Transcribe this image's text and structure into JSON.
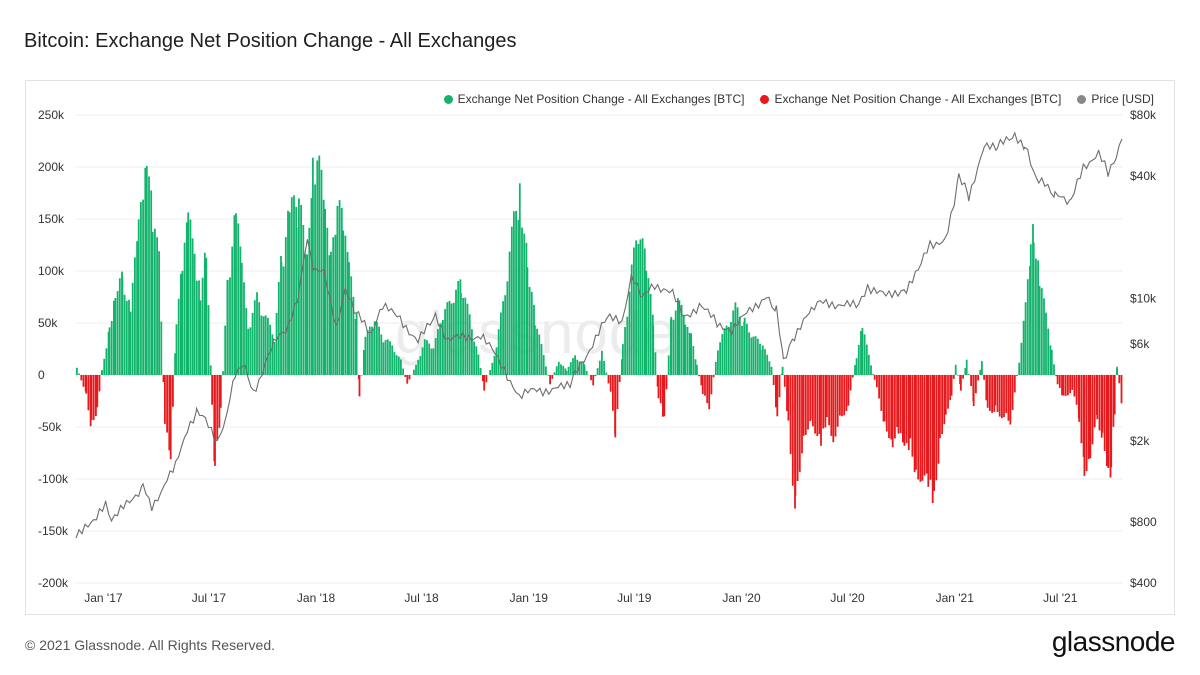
{
  "title": "Bitcoin: Exchange Net Position Change - All Exchanges",
  "footer": "© 2021 Glassnode. All Rights Reserved.",
  "brand": "glassnode",
  "watermark": "glassnode",
  "colors": {
    "positive": "#12b36b",
    "negative": "#e8191c",
    "price": "#6d6d6d",
    "grid": "#eeeeee"
  },
  "legend": [
    {
      "label": "Exchange Net Position Change - All Exchanges [BTC]",
      "color": "#12b36b"
    },
    {
      "label": "Exchange Net Position Change - All Exchanges [BTC]",
      "color": "#e8191c"
    },
    {
      "label": "Price [USD]",
      "color": "#888888"
    }
  ],
  "chart_data": {
    "type": "bar",
    "title": "Bitcoin: Exchange Net Position Change - All Exchanges",
    "x_ticks": [
      "Jan '17",
      "Jul '17",
      "Jan '18",
      "Jul '18",
      "Jan '19",
      "Jul '19",
      "Jan '20",
      "Jul '20",
      "Jan '21",
      "Jul '21"
    ],
    "x_range": [
      "2016-11-15",
      "2021-10-15"
    ],
    "y_left": {
      "ticks": [
        "250k",
        "200k",
        "150k",
        "100k",
        "50k",
        "0",
        "-50k",
        "-100k",
        "-150k",
        "-200k"
      ],
      "ylim": [
        -200000,
        250000
      ]
    },
    "y_right": {
      "scale": "log",
      "ticks": [
        "$80k",
        "$40k",
        "$10k",
        "$6k",
        "$2k",
        "$800",
        "$400"
      ],
      "ylim": [
        400,
        80000
      ]
    },
    "grid": true,
    "legend_position": "top-right",
    "series": [
      {
        "name": "Exchange Net Position Change - All Exchanges [BTC]",
        "type": "bar",
        "points": [
          [
            "2016-11-15",
            8000
          ],
          [
            "2016-12-01",
            -20000
          ],
          [
            "2016-12-10",
            -55000
          ],
          [
            "2016-12-20",
            -35000
          ],
          [
            "2016-12-28",
            5000
          ],
          [
            "2017-01-10",
            50000
          ],
          [
            "2017-01-20",
            90000
          ],
          [
            "2017-02-01",
            100000
          ],
          [
            "2017-02-15",
            70000
          ],
          [
            "2017-03-01",
            150000
          ],
          [
            "2017-03-15",
            250000
          ],
          [
            "2017-03-25",
            160000
          ],
          [
            "2017-04-05",
            120000
          ],
          [
            "2017-04-15",
            -50000
          ],
          [
            "2017-04-25",
            -95000
          ],
          [
            "2017-05-05",
            60000
          ],
          [
            "2017-05-15",
            110000
          ],
          [
            "2017-05-25",
            160000
          ],
          [
            "2017-06-05",
            130000
          ],
          [
            "2017-06-15",
            90000
          ],
          [
            "2017-06-25",
            130000
          ],
          [
            "2017-07-05",
            -30000
          ],
          [
            "2017-07-10",
            -100000
          ],
          [
            "2017-07-20",
            -40000
          ],
          [
            "2017-08-01",
            100000
          ],
          [
            "2017-08-15",
            170000
          ],
          [
            "2017-08-25",
            110000
          ],
          [
            "2017-09-05",
            50000
          ],
          [
            "2017-09-20",
            80000
          ],
          [
            "2017-10-05",
            60000
          ],
          [
            "2017-10-20",
            40000
          ],
          [
            "2017-11-01",
            120000
          ],
          [
            "2017-11-15",
            170000
          ],
          [
            "2017-12-01",
            180000
          ],
          [
            "2017-12-15",
            120000
          ],
          [
            "2017-12-25",
            235000
          ],
          [
            "2018-01-05",
            220000
          ],
          [
            "2018-01-15",
            160000
          ],
          [
            "2018-01-25",
            120000
          ],
          [
            "2018-02-05",
            195000
          ],
          [
            "2018-02-15",
            150000
          ],
          [
            "2018-02-25",
            110000
          ],
          [
            "2018-03-10",
            60000
          ],
          [
            "2018-03-15",
            -25000
          ],
          [
            "2018-03-25",
            40000
          ],
          [
            "2018-04-10",
            55000
          ],
          [
            "2018-04-25",
            40000
          ],
          [
            "2018-05-10",
            30000
          ],
          [
            "2018-05-25",
            15000
          ],
          [
            "2018-06-05",
            -10000
          ],
          [
            "2018-06-20",
            10000
          ],
          [
            "2018-07-05",
            35000
          ],
          [
            "2018-07-20",
            30000
          ],
          [
            "2018-08-05",
            60000
          ],
          [
            "2018-08-20",
            80000
          ],
          [
            "2018-09-05",
            95000
          ],
          [
            "2018-09-20",
            60000
          ],
          [
            "2018-10-05",
            20000
          ],
          [
            "2018-10-15",
            -15000
          ],
          [
            "2018-10-25",
            5000
          ],
          [
            "2018-11-05",
            30000
          ],
          [
            "2018-11-20",
            90000
          ],
          [
            "2018-12-05",
            160000
          ],
          [
            "2018-12-15",
            200000
          ],
          [
            "2018-12-28",
            120000
          ],
          [
            "2019-01-10",
            60000
          ],
          [
            "2019-01-25",
            20000
          ],
          [
            "2019-02-05",
            -10000
          ],
          [
            "2019-02-20",
            15000
          ],
          [
            "2019-03-05",
            5000
          ],
          [
            "2019-03-20",
            20000
          ],
          [
            "2019-04-05",
            10000
          ],
          [
            "2019-04-20",
            -10000
          ],
          [
            "2019-05-05",
            25000
          ],
          [
            "2019-05-20",
            -20000
          ],
          [
            "2019-05-28",
            -60000
          ],
          [
            "2019-06-10",
            30000
          ],
          [
            "2019-06-25",
            110000
          ],
          [
            "2019-07-10",
            160000
          ],
          [
            "2019-07-20",
            110000
          ],
          [
            "2019-08-01",
            60000
          ],
          [
            "2019-08-10",
            -25000
          ],
          [
            "2019-08-20",
            -50000
          ],
          [
            "2019-09-01",
            60000
          ],
          [
            "2019-09-15",
            80000
          ],
          [
            "2019-09-25",
            50000
          ],
          [
            "2019-10-05",
            40000
          ],
          [
            "2019-10-15",
            10000
          ],
          [
            "2019-10-25",
            -20000
          ],
          [
            "2019-11-05",
            -35000
          ],
          [
            "2019-11-20",
            30000
          ],
          [
            "2019-12-05",
            50000
          ],
          [
            "2019-12-20",
            70000
          ],
          [
            "2020-01-05",
            55000
          ],
          [
            "2020-01-20",
            40000
          ],
          [
            "2020-02-05",
            30000
          ],
          [
            "2020-02-20",
            10000
          ],
          [
            "2020-03-01",
            -45000
          ],
          [
            "2020-03-10",
            10000
          ],
          [
            "2020-03-20",
            -50000
          ],
          [
            "2020-04-01",
            -140000
          ],
          [
            "2020-04-15",
            -60000
          ],
          [
            "2020-05-01",
            -50000
          ],
          [
            "2020-05-15",
            -75000
          ],
          [
            "2020-05-25",
            -50000
          ],
          [
            "2020-06-05",
            -65000
          ],
          [
            "2020-06-20",
            -45000
          ],
          [
            "2020-07-01",
            -30000
          ],
          [
            "2020-07-15",
            20000
          ],
          [
            "2020-07-25",
            50000
          ],
          [
            "2020-08-05",
            20000
          ],
          [
            "2020-08-15",
            -5000
          ],
          [
            "2020-09-01",
            -50000
          ],
          [
            "2020-09-15",
            -70000
          ],
          [
            "2020-09-25",
            -60000
          ],
          [
            "2020-10-05",
            -80000
          ],
          [
            "2020-10-15",
            -75000
          ],
          [
            "2020-10-25",
            -100000
          ],
          [
            "2020-11-05",
            -105000
          ],
          [
            "2020-11-15",
            -120000
          ],
          [
            "2020-11-25",
            -140000
          ],
          [
            "2020-12-05",
            -70000
          ],
          [
            "2020-12-15",
            -40000
          ],
          [
            "2020-12-25",
            -20000
          ],
          [
            "2021-01-01",
            10000
          ],
          [
            "2021-01-10",
            -15000
          ],
          [
            "2021-01-20",
            15000
          ],
          [
            "2021-02-01",
            -30000
          ],
          [
            "2021-02-15",
            15000
          ],
          [
            "2021-02-25",
            -40000
          ],
          [
            "2021-03-10",
            -35000
          ],
          [
            "2021-03-25",
            -45000
          ],
          [
            "2021-04-05",
            -50000
          ],
          [
            "2021-04-20",
            15000
          ],
          [
            "2021-05-01",
            70000
          ],
          [
            "2021-05-10",
            130000
          ],
          [
            "2021-05-15",
            150000
          ],
          [
            "2021-05-25",
            105000
          ],
          [
            "2021-06-05",
            60000
          ],
          [
            "2021-06-15",
            25000
          ],
          [
            "2021-06-25",
            -10000
          ],
          [
            "2021-07-05",
            -25000
          ],
          [
            "2021-07-20",
            -15000
          ],
          [
            "2021-08-01",
            -45000
          ],
          [
            "2021-08-10",
            -100000
          ],
          [
            "2021-08-20",
            -80000
          ],
          [
            "2021-09-01",
            -45000
          ],
          [
            "2021-09-10",
            -65000
          ],
          [
            "2021-09-20",
            -95000
          ],
          [
            "2021-09-25",
            -100000
          ],
          [
            "2021-10-01",
            -40000
          ],
          [
            "2021-10-05",
            10000
          ],
          [
            "2021-10-15",
            -40000
          ]
        ]
      },
      {
        "name": "Price [USD]",
        "type": "line",
        "points": [
          [
            "2016-11-15",
            700
          ],
          [
            "2016-12-15",
            780
          ],
          [
            "2017-01-05",
            1000
          ],
          [
            "2017-01-15",
            830
          ],
          [
            "2017-02-15",
            1000
          ],
          [
            "2017-03-10",
            1200
          ],
          [
            "2017-03-25",
            950
          ],
          [
            "2017-04-15",
            1200
          ],
          [
            "2017-05-05",
            1500
          ],
          [
            "2017-05-25",
            2300
          ],
          [
            "2017-06-10",
            2800
          ],
          [
            "2017-06-25",
            2500
          ],
          [
            "2017-07-15",
            1950
          ],
          [
            "2017-08-01",
            2700
          ],
          [
            "2017-08-15",
            4200
          ],
          [
            "2017-09-01",
            4700
          ],
          [
            "2017-09-15",
            3500
          ],
          [
            "2017-10-01",
            4300
          ],
          [
            "2017-10-20",
            6000
          ],
          [
            "2017-11-10",
            7000
          ],
          [
            "2017-11-30",
            10000
          ],
          [
            "2017-12-17",
            19500
          ],
          [
            "2017-12-30",
            13500
          ],
          [
            "2018-01-15",
            13800
          ],
          [
            "2018-02-05",
            7000
          ],
          [
            "2018-02-20",
            11000
          ],
          [
            "2018-03-15",
            8200
          ],
          [
            "2018-04-05",
            6800
          ],
          [
            "2018-04-25",
            9200
          ],
          [
            "2018-05-20",
            8200
          ],
          [
            "2018-06-25",
            6200
          ],
          [
            "2018-07-25",
            8200
          ],
          [
            "2018-08-15",
            6300
          ],
          [
            "2018-09-15",
            6500
          ],
          [
            "2018-10-15",
            6500
          ],
          [
            "2018-11-20",
            4500
          ],
          [
            "2018-12-15",
            3300
          ],
          [
            "2019-01-15",
            3600
          ],
          [
            "2019-02-10",
            3500
          ],
          [
            "2019-03-15",
            3900
          ],
          [
            "2019-04-05",
            5000
          ],
          [
            "2019-05-15",
            8000
          ],
          [
            "2019-06-10",
            7800
          ],
          [
            "2019-06-26",
            12800
          ],
          [
            "2019-07-15",
            10000
          ],
          [
            "2019-08-05",
            11800
          ],
          [
            "2019-09-05",
            10500
          ],
          [
            "2019-09-25",
            8200
          ],
          [
            "2019-10-25",
            9300
          ],
          [
            "2019-11-20",
            7500
          ],
          [
            "2019-12-15",
            7100
          ],
          [
            "2020-01-15",
            8700
          ],
          [
            "2020-02-12",
            10300
          ],
          [
            "2020-03-01",
            8700
          ],
          [
            "2020-03-13",
            5000
          ],
          [
            "2020-04-01",
            6600
          ],
          [
            "2020-04-30",
            8700
          ],
          [
            "2020-05-15",
            9500
          ],
          [
            "2020-06-15",
            9400
          ],
          [
            "2020-07-20",
            9200
          ],
          [
            "2020-08-05",
            11500
          ],
          [
            "2020-09-05",
            10300
          ],
          [
            "2020-10-10",
            11300
          ],
          [
            "2020-10-30",
            13700
          ],
          [
            "2020-11-20",
            18500
          ],
          [
            "2020-12-15",
            19500
          ],
          [
            "2020-12-31",
            29000
          ],
          [
            "2021-01-08",
            40000
          ],
          [
            "2021-01-25",
            32000
          ],
          [
            "2021-02-20",
            55000
          ],
          [
            "2021-03-15",
            56000
          ],
          [
            "2021-04-14",
            63000
          ],
          [
            "2021-05-01",
            57000
          ],
          [
            "2021-05-20",
            38000
          ],
          [
            "2021-06-10",
            36000
          ],
          [
            "2021-06-22",
            32000
          ],
          [
            "2021-07-20",
            30000
          ],
          [
            "2021-08-10",
            45000
          ],
          [
            "2021-09-05",
            51000
          ],
          [
            "2021-09-21",
            42000
          ],
          [
            "2021-10-05",
            51000
          ],
          [
            "2021-10-15",
            61000
          ]
        ]
      }
    ]
  }
}
